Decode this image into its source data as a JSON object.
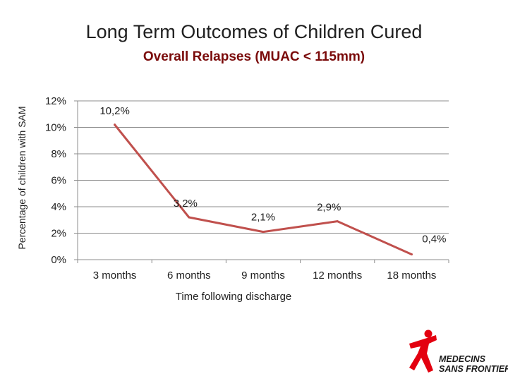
{
  "chart_data": {
    "type": "line",
    "title": "Long Term Outcomes of Children Cured",
    "subtitle": "Overall Relapses (MUAC < 115mm)",
    "xlabel": "Time following discharge",
    "ylabel": "Percentage of children with SAM",
    "categories": [
      "3 months",
      "6 months",
      "9 months",
      "12 months",
      "18 months"
    ],
    "series": [
      {
        "name": "Relapses",
        "values": [
          10.2,
          3.2,
          2.1,
          2.9,
          0.4
        ],
        "color": "#c0504d"
      }
    ],
    "data_labels": [
      "10,2%",
      "3,2%",
      "2,1%",
      "2,9%",
      "0,4%"
    ],
    "ylim": [
      0,
      12
    ],
    "yticks": [
      0,
      2,
      4,
      6,
      8,
      10,
      12
    ],
    "ytick_labels": [
      "0%",
      "2%",
      "4%",
      "6%",
      "8%",
      "10%",
      "12%"
    ],
    "grid": true,
    "legend": "none",
    "grid_color": "#8c8c8c",
    "text_color": "#1f1f1f"
  },
  "logo": {
    "line1": "MEDECINS",
    "line2": "SANS FRONTIERES",
    "color": "#e3000f"
  }
}
